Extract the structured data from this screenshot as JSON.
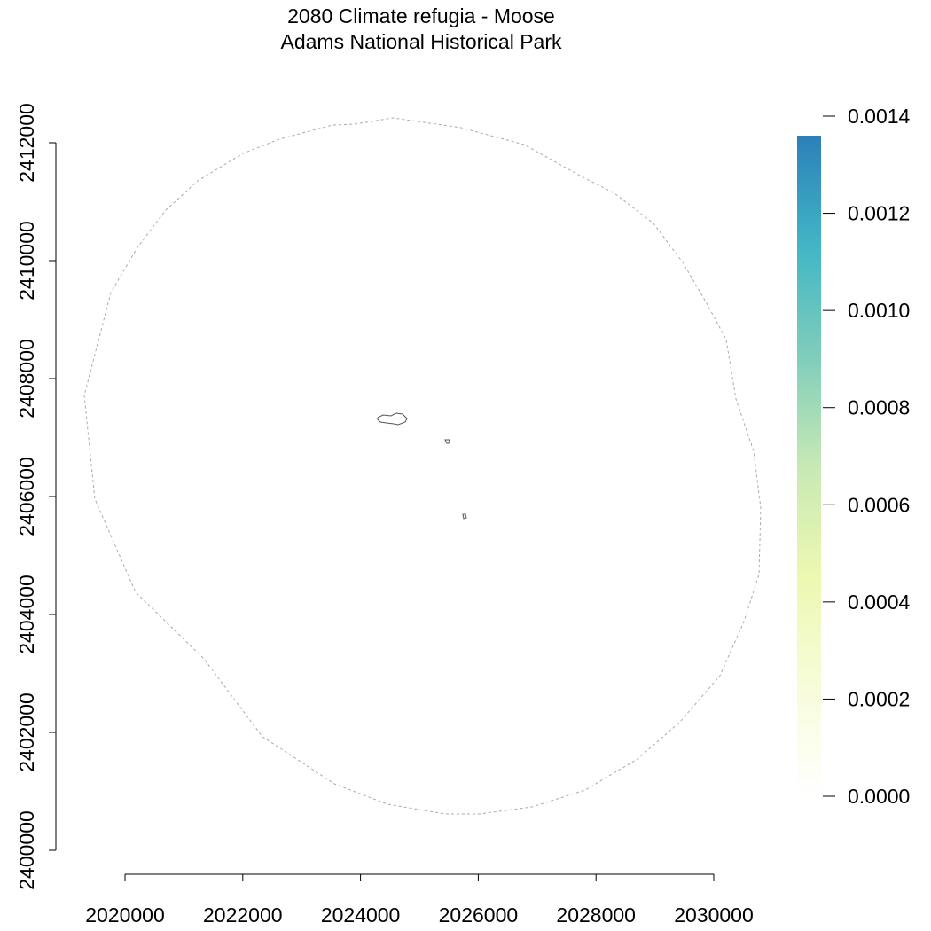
{
  "title": "2080 Climate refugia - Moose",
  "subtitle": "Adams National Historical Park",
  "x_axis": {
    "min": 2020000,
    "max": 2030000,
    "ticks": [
      "2020000",
      "2022000",
      "2024000",
      "2026000",
      "2028000",
      "2030000"
    ]
  },
  "y_axis": {
    "min": 2400000,
    "max": 2412000,
    "ticks": [
      "2400000",
      "2402000",
      "2404000",
      "2406000",
      "2408000",
      "2410000",
      "2412000"
    ]
  },
  "legend": {
    "min": 0.0,
    "max": 0.0014,
    "ticks": [
      "0.0000",
      "0.0002",
      "0.0004",
      "0.0006",
      "0.0008",
      "0.0010",
      "0.0012",
      "0.0014"
    ],
    "colors": [
      "#ffffff",
      "#f7fcd9",
      "#edf8b1",
      "#c7e9b4",
      "#7fcdbb",
      "#41b6c4",
      "#2c7fb8"
    ]
  },
  "colors": {
    "buffer_outline": "#aaaaaa",
    "park_outline": "#555555",
    "axis": "#000000"
  }
}
